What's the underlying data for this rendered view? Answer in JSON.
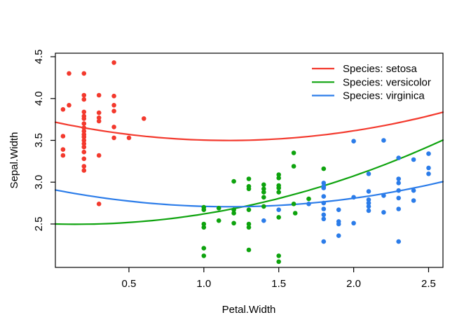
{
  "chart_data": {
    "type": "scatter",
    "title": "",
    "xlabel": "Petal.Width",
    "ylabel": "Sepal.Width",
    "xlim": [
      0.009,
      2.596
    ],
    "ylim": [
      1.981,
      4.542
    ],
    "x_ticks": [
      "0.5",
      "1.0",
      "1.5",
      "2.0",
      "2.5"
    ],
    "x_tick_values": [
      0.5,
      1.0,
      1.5,
      2.0,
      2.5
    ],
    "y_ticks": [
      "2.5",
      "3.0",
      "3.5",
      "4.0",
      "4.5"
    ],
    "y_tick_values": [
      2.5,
      3.0,
      3.5,
      4.0,
      4.5
    ],
    "grid": false,
    "box": true,
    "legend_position": "top-right",
    "legend_title_prefix": "Species: ",
    "axis_color": "#000000",
    "background_color": "#ffffff",
    "series": [
      {
        "name": "setosa",
        "legend_label": "Species: setosa",
        "color": "#F3392D",
        "fit_quadratic": {
          "a": 0.164,
          "b": -0.381,
          "c": 3.72
        },
        "points": [
          [
            0.1,
            4.3
          ],
          [
            0.2,
            4.3
          ],
          [
            0.4,
            4.43
          ],
          [
            0.2,
            4.04
          ],
          [
            0.3,
            4.04
          ],
          [
            0.4,
            4.03
          ],
          [
            0.2,
            3.99
          ],
          [
            0.1,
            3.92
          ],
          [
            0.4,
            3.92
          ],
          [
            0.06,
            3.87
          ],
          [
            0.4,
            3.85
          ],
          [
            0.2,
            3.84
          ],
          [
            0.3,
            3.83
          ],
          [
            0.2,
            3.79
          ],
          [
            0.3,
            3.77
          ],
          [
            0.2,
            3.76
          ],
          [
            0.6,
            3.76
          ],
          [
            0.3,
            3.73
          ],
          [
            0.2,
            3.7
          ],
          [
            0.4,
            3.66
          ],
          [
            0.2,
            3.65
          ],
          [
            0.2,
            3.61
          ],
          [
            0.2,
            3.57
          ],
          [
            0.06,
            3.55
          ],
          [
            0.2,
            3.54
          ],
          [
            0.4,
            3.53
          ],
          [
            0.5,
            3.53
          ],
          [
            0.2,
            3.5
          ],
          [
            0.2,
            3.46
          ],
          [
            0.2,
            3.42
          ],
          [
            0.06,
            3.39
          ],
          [
            0.2,
            3.36
          ],
          [
            0.06,
            3.32
          ],
          [
            0.3,
            3.32
          ],
          [
            0.2,
            3.28
          ],
          [
            0.2,
            3.19
          ],
          [
            0.2,
            3.14
          ],
          [
            0.3,
            2.74
          ]
        ]
      },
      {
        "name": "versicolor",
        "legend_label": "Species: versicolor",
        "color": "#0EA30E",
        "fit_quadratic": {
          "a": 0.167,
          "b": -0.047,
          "c": 2.5
        },
        "points": [
          [
            1.0,
            2.7
          ],
          [
            1.0,
            2.67
          ],
          [
            1.0,
            2.5
          ],
          [
            1.0,
            2.46
          ],
          [
            1.0,
            2.21
          ],
          [
            1.0,
            2.12
          ],
          [
            1.1,
            2.69
          ],
          [
            1.1,
            2.54
          ],
          [
            1.2,
            3.01
          ],
          [
            1.2,
            2.67
          ],
          [
            1.2,
            2.63
          ],
          [
            1.2,
            2.51
          ],
          [
            1.3,
            3.04
          ],
          [
            1.3,
            2.95
          ],
          [
            1.3,
            2.92
          ],
          [
            1.3,
            2.67
          ],
          [
            1.3,
            2.5
          ],
          [
            1.3,
            2.46
          ],
          [
            1.3,
            2.19
          ],
          [
            1.4,
            2.97
          ],
          [
            1.4,
            2.92
          ],
          [
            1.4,
            2.88
          ],
          [
            1.4,
            2.82
          ],
          [
            1.4,
            2.71
          ],
          [
            1.5,
            3.09
          ],
          [
            1.5,
            3.05
          ],
          [
            1.5,
            2.96
          ],
          [
            1.5,
            2.93
          ],
          [
            1.5,
            2.88
          ],
          [
            1.5,
            2.58
          ],
          [
            1.5,
            2.12
          ],
          [
            1.5,
            2.05
          ],
          [
            1.6,
            3.35
          ],
          [
            1.6,
            3.19
          ],
          [
            1.6,
            2.74
          ],
          [
            1.61,
            2.63
          ],
          [
            1.7,
            2.8
          ],
          [
            1.8,
            3.16
          ]
        ]
      },
      {
        "name": "virginica",
        "legend_label": "Species: virginica",
        "color": "#2B7CE9",
        "fit_quadratic": {
          "a": 0.148,
          "b": -0.347,
          "c": 2.91
        },
        "points": [
          [
            1.4,
            2.54
          ],
          [
            1.5,
            2.67
          ],
          [
            1.7,
            2.74
          ],
          [
            1.8,
            2.99
          ],
          [
            1.8,
            2.95
          ],
          [
            1.8,
            2.93
          ],
          [
            1.8,
            2.83
          ],
          [
            1.8,
            2.75
          ],
          [
            1.8,
            2.68
          ],
          [
            1.8,
            2.61
          ],
          [
            1.8,
            2.56
          ],
          [
            1.8,
            2.29
          ],
          [
            1.9,
            2.67
          ],
          [
            1.9,
            2.53
          ],
          [
            1.9,
            2.5
          ],
          [
            1.9,
            2.36
          ],
          [
            2.0,
            3.49
          ],
          [
            2.0,
            2.82
          ],
          [
            2.0,
            2.51
          ],
          [
            2.1,
            3.1
          ],
          [
            2.1,
            2.89
          ],
          [
            2.1,
            2.79
          ],
          [
            2.1,
            2.75
          ],
          [
            2.1,
            2.71
          ],
          [
            2.1,
            2.66
          ],
          [
            2.2,
            3.5
          ],
          [
            2.2,
            2.84
          ],
          [
            2.2,
            2.64
          ],
          [
            2.3,
            3.29
          ],
          [
            2.3,
            3.04
          ],
          [
            2.3,
            2.99
          ],
          [
            2.3,
            2.9
          ],
          [
            2.3,
            2.81
          ],
          [
            2.3,
            2.68
          ],
          [
            2.3,
            2.29
          ],
          [
            2.4,
            3.27
          ],
          [
            2.4,
            2.9
          ],
          [
            2.4,
            2.78
          ],
          [
            2.5,
            3.34
          ],
          [
            2.5,
            3.17
          ],
          [
            2.5,
            3.1
          ]
        ]
      }
    ]
  }
}
